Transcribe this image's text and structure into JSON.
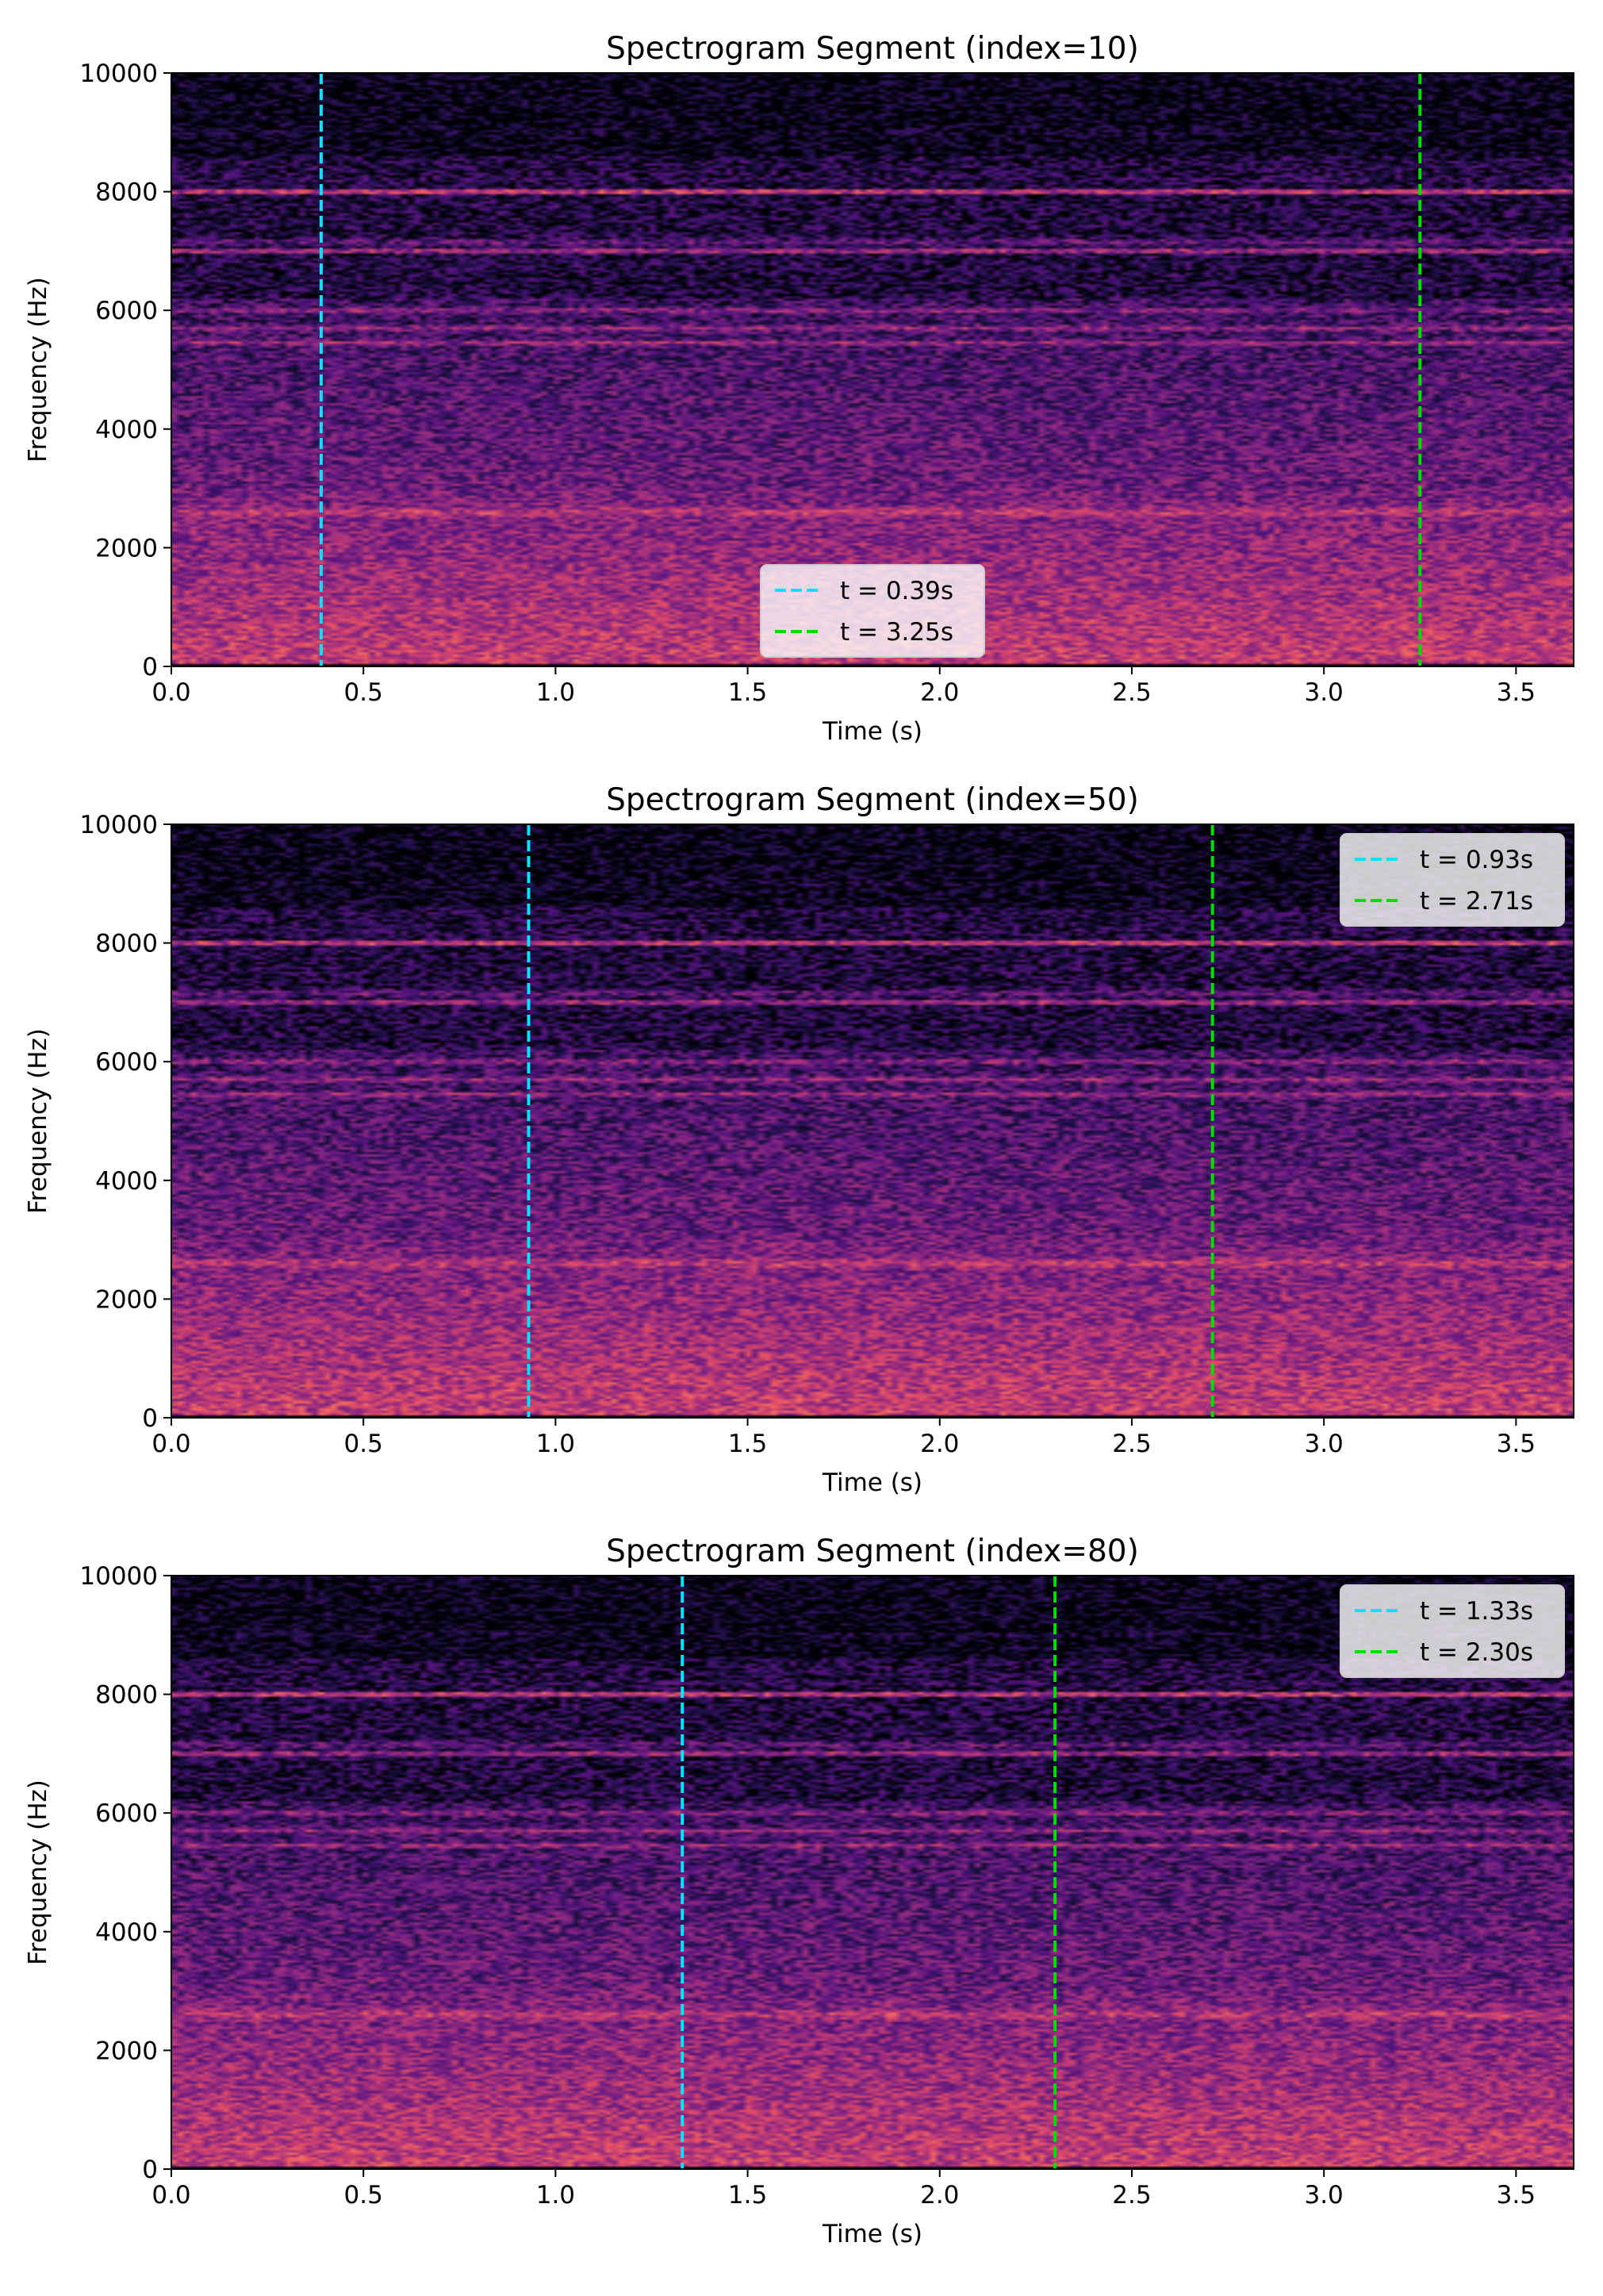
{
  "chart_data": [
    {
      "type": "heatmap",
      "title": "Spectrogram Segment (index=10)",
      "xlabel": "Time (s)",
      "ylabel": "Frequency (Hz)",
      "xlim": [
        0,
        3.65
      ],
      "ylim": [
        0,
        10000
      ],
      "xticks": [
        "0.0",
        "0.5",
        "1.0",
        "1.5",
        "2.0",
        "2.5",
        "3.0",
        "3.5"
      ],
      "yticks": [
        "0",
        "2000",
        "4000",
        "6000",
        "8000",
        "10000"
      ],
      "colormap": "magma",
      "bands_hz": [
        8000,
        7000,
        6000,
        5700,
        5450,
        2600
      ],
      "markers": [
        {
          "label": "t = 0.39s",
          "x": 0.39,
          "color": "#00e5ff",
          "style": "dashed"
        },
        {
          "label": "t = 3.25s",
          "x": 3.25,
          "color": "#00dd00",
          "style": "dashed"
        }
      ],
      "legend": "lower-center"
    },
    {
      "type": "heatmap",
      "title": "Spectrogram Segment (index=50)",
      "xlabel": "Time (s)",
      "ylabel": "Frequency (Hz)",
      "xlim": [
        0,
        3.65
      ],
      "ylim": [
        0,
        10000
      ],
      "xticks": [
        "0.0",
        "0.5",
        "1.0",
        "1.5",
        "2.0",
        "2.5",
        "3.0",
        "3.5"
      ],
      "yticks": [
        "0",
        "2000",
        "4000",
        "6000",
        "8000",
        "10000"
      ],
      "colormap": "magma",
      "bands_hz": [
        8000,
        7000,
        6000,
        5700,
        5450,
        2600
      ],
      "markers": [
        {
          "label": "t = 0.93s",
          "x": 0.93,
          "color": "#00e5ff",
          "style": "dashed"
        },
        {
          "label": "t = 2.71s",
          "x": 2.71,
          "color": "#00dd00",
          "style": "dashed"
        }
      ],
      "legend": "top-right"
    },
    {
      "type": "heatmap",
      "title": "Spectrogram Segment (index=80)",
      "xlabel": "Time (s)",
      "ylabel": "Frequency (Hz)",
      "xlim": [
        0,
        3.65
      ],
      "ylim": [
        0,
        10000
      ],
      "xticks": [
        "0.0",
        "0.5",
        "1.0",
        "1.5",
        "2.0",
        "2.5",
        "3.0",
        "3.5"
      ],
      "yticks": [
        "0",
        "2000",
        "4000",
        "6000",
        "8000",
        "10000"
      ],
      "colormap": "magma",
      "bands_hz": [
        8000,
        7000,
        6000,
        5700,
        5450,
        2600
      ],
      "markers": [
        {
          "label": "t = 1.33s",
          "x": 1.33,
          "color": "#00e5ff",
          "style": "dashed"
        },
        {
          "label": "t = 2.30s",
          "x": 2.3,
          "color": "#00dd00",
          "style": "dashed"
        }
      ],
      "legend": "top-right"
    }
  ]
}
